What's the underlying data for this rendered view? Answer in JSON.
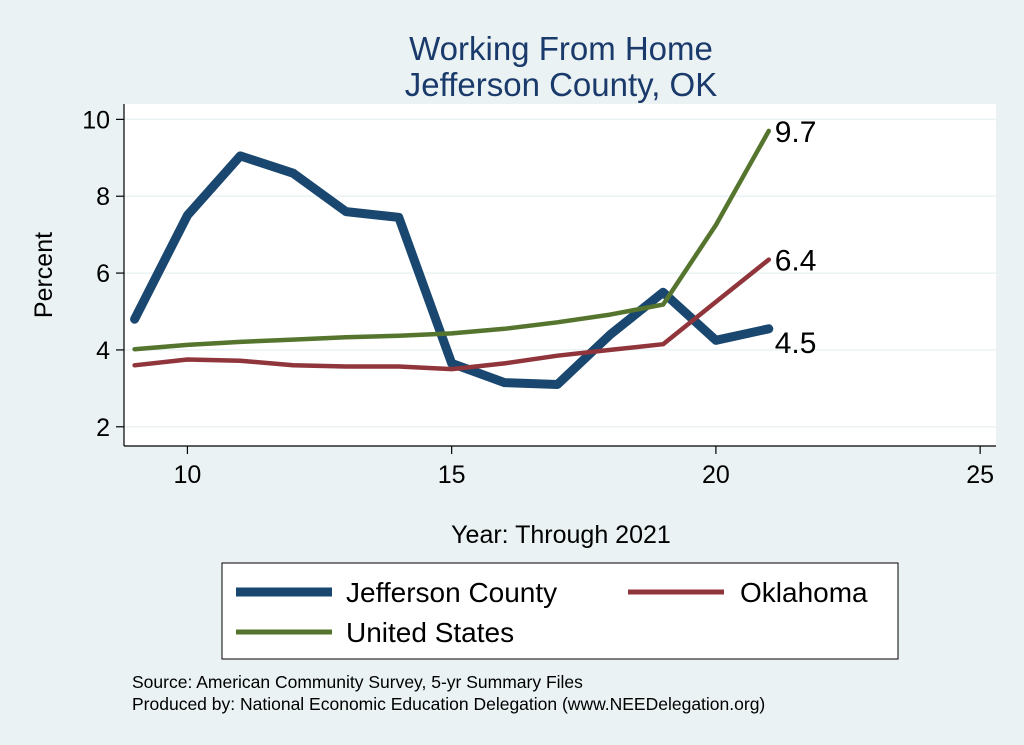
{
  "chart_data": {
    "type": "line",
    "title": [
      "Working From Home",
      "Jefferson County, OK"
    ],
    "xlabel": "Year: Through 2021",
    "ylabel": "Percent",
    "xlim": [
      8.8,
      25.3
    ],
    "ylim": [
      1.5,
      10.4
    ],
    "xticks": [
      10,
      15,
      20,
      25
    ],
    "yticks": [
      2,
      4,
      6,
      8,
      10
    ],
    "grid": true,
    "legend_position": "bottom",
    "series": [
      {
        "name": "Jefferson County",
        "color": "#1a476f",
        "x": [
          9,
          10,
          11,
          12,
          13,
          14,
          15,
          16,
          17,
          18,
          19,
          20,
          21
        ],
        "values": [
          4.8,
          7.5,
          9.05,
          8.6,
          7.6,
          7.45,
          3.65,
          3.15,
          3.1,
          4.4,
          5.5,
          4.25,
          4.55
        ],
        "end_label": "4.5"
      },
      {
        "name": "Oklahoma",
        "color": "#90353b",
        "x": [
          9,
          10,
          11,
          12,
          13,
          14,
          15,
          16,
          17,
          18,
          19,
          20,
          21
        ],
        "values": [
          3.6,
          3.75,
          3.72,
          3.6,
          3.57,
          3.57,
          3.5,
          3.65,
          3.85,
          4.0,
          4.15,
          5.25,
          6.35
        ],
        "end_label": "6.4"
      },
      {
        "name": "United States",
        "color": "#55752f",
        "x": [
          9,
          10,
          11,
          12,
          13,
          14,
          15,
          16,
          17,
          18,
          19,
          20,
          21
        ],
        "values": [
          4.02,
          4.13,
          4.21,
          4.27,
          4.33,
          4.37,
          4.43,
          4.55,
          4.72,
          4.92,
          5.18,
          7.25,
          9.7
        ],
        "end_label": "9.7"
      }
    ],
    "source_notes": [
      "Source: American Community Survey, 5-yr Summary Files",
      "Produced by: National Economic Education Delegation (www.NEEDelegation.org)"
    ]
  }
}
